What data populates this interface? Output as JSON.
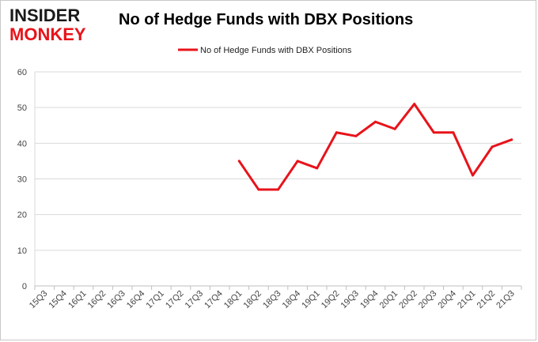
{
  "logo": {
    "line1": "INSIDER",
    "line2": "MONKEY"
  },
  "chart_data": {
    "type": "line",
    "title": "No of Hedge Funds with DBX Positions",
    "xlabel": "",
    "ylabel": "",
    "ylim": [
      0,
      60
    ],
    "yticks": [
      0,
      10,
      20,
      30,
      40,
      50,
      60
    ],
    "grid": "horizontal",
    "legend": "top-center",
    "categories": [
      "15Q3",
      "15Q4",
      "16Q1",
      "16Q2",
      "16Q3",
      "16Q4",
      "17Q1",
      "17Q2",
      "17Q3",
      "17Q4",
      "18Q1",
      "18Q2",
      "18Q3",
      "18Q4",
      "19Q1",
      "19Q2",
      "19Q3",
      "19Q4",
      "20Q1",
      "20Q2",
      "20Q3",
      "20Q4",
      "21Q1",
      "21Q2",
      "21Q3"
    ],
    "series": [
      {
        "name": "No of Hedge Funds with DBX Positions",
        "color": "#e8131a",
        "values": [
          null,
          null,
          null,
          null,
          null,
          null,
          null,
          null,
          null,
          null,
          35,
          27,
          27,
          35,
          33,
          43,
          42,
          46,
          44,
          51,
          43,
          43,
          31,
          39,
          41
        ]
      }
    ]
  }
}
